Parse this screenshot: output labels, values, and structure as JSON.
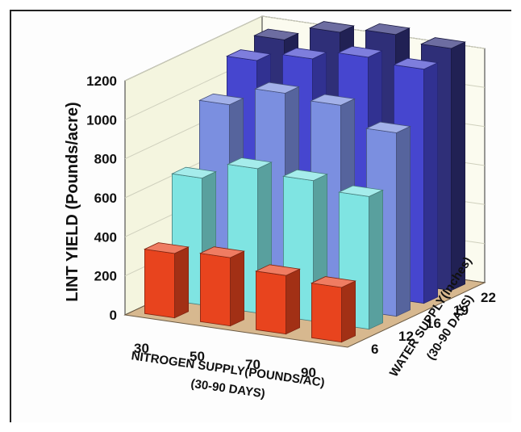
{
  "chart_data": {
    "type": "bar3d",
    "ylabel": "LINT YIELD (Pounds/acre)",
    "xlabel_line1": "NITROGEN SUPPLY(POUNDS/AC)",
    "xlabel_line2": "(30-90 DAYS)",
    "zlabel_line1": "WATER SUPPLY(Inches)",
    "zlabel_line2": "(30-90 DAYS)",
    "ylim": [
      0,
      1200
    ],
    "yticks": [
      0,
      200,
      400,
      600,
      800,
      1000,
      1200
    ],
    "x_categories": [
      "30",
      "50",
      "70",
      "90"
    ],
    "z_categories": [
      "6",
      "12",
      "16",
      "19",
      "22"
    ],
    "series": [
      {
        "water": "6",
        "color": "#e8441e",
        "values": [
          330,
          350,
          300,
          280
        ]
      },
      {
        "water": "12",
        "color": "#7fe4e2",
        "values": [
          650,
          740,
          720,
          680
        ]
      },
      {
        "water": "16",
        "color": "#7b8fe0",
        "values": [
          960,
          1060,
          1040,
          940
        ]
      },
      {
        "water": "19",
        "color": "#4646cf",
        "values": [
          1120,
          1170,
          1220,
          1200
        ]
      },
      {
        "water": "22",
        "color": "#2f2f78",
        "values": [
          1160,
          1240,
          1270,
          1240
        ]
      }
    ]
  }
}
